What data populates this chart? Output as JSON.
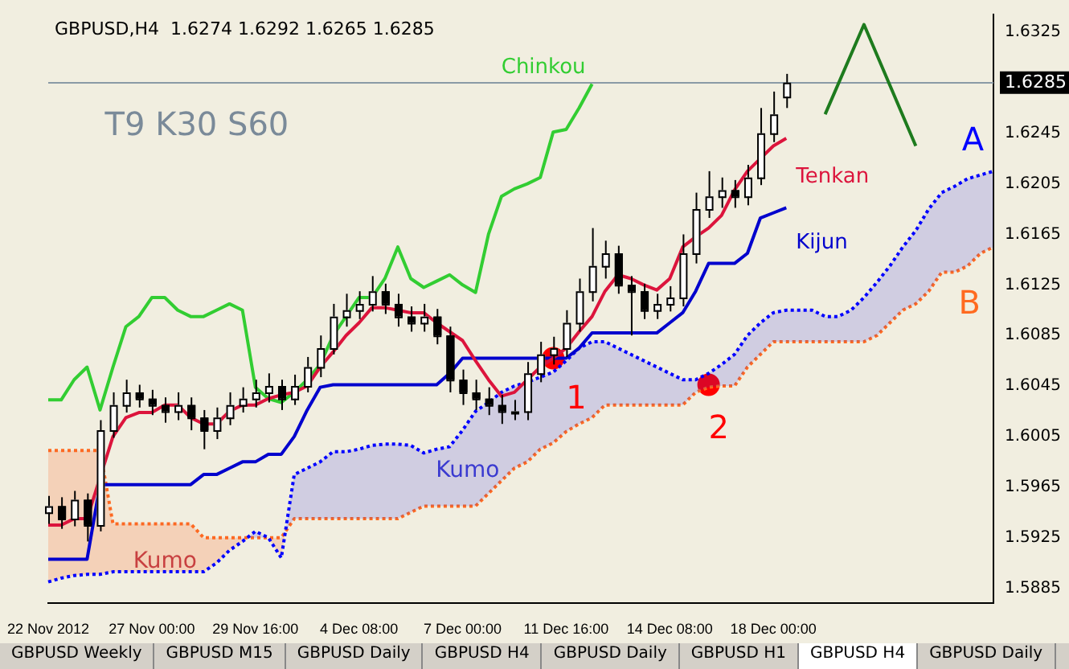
{
  "chart_data": {
    "type": "candlestick",
    "title": "GBPUSD,H4  1.6274 1.6292 1.6265 1.6285",
    "categories": [
      "22 Nov 2012",
      null,
      null,
      null,
      null,
      null,
      null,
      null,
      "27 Nov 00:00",
      null,
      null,
      null,
      null,
      null,
      null,
      null,
      "29 Nov 16:00",
      null,
      null,
      null,
      null,
      null,
      null,
      null,
      "4 Dec 08:00",
      null,
      null,
      null,
      null,
      null,
      null,
      null,
      "7 Dec 00:00",
      null,
      null,
      null,
      null,
      null,
      null,
      null,
      "11 Dec 16:00",
      null,
      null,
      null,
      null,
      null,
      null,
      null,
      "14 Dec 08:00",
      null,
      null,
      null,
      null,
      null,
      null,
      null,
      "18 Dec 00:00",
      null,
      null,
      null,
      null,
      null,
      null,
      null,
      null,
      null,
      null,
      null,
      null,
      null,
      null,
      null,
      null,
      null
    ],
    "ohlc": [
      [
        1.5945,
        1.5958,
        1.5936,
        1.595
      ],
      [
        1.595,
        1.5957,
        1.5932,
        1.594
      ],
      [
        1.594,
        1.5962,
        1.5934,
        1.5955
      ],
      [
        1.5955,
        1.596,
        1.5922,
        1.5935
      ],
      [
        1.5935,
        1.6018,
        1.593,
        1.601
      ],
      [
        1.601,
        1.604,
        1.6004,
        1.603
      ],
      [
        1.603,
        1.605,
        1.6024,
        1.604
      ],
      [
        1.604,
        1.6046,
        1.6028,
        1.6035
      ],
      [
        1.6035,
        1.6042,
        1.6022,
        1.603
      ],
      [
        1.603,
        1.6036,
        1.6016,
        1.6025
      ],
      [
        1.6025,
        1.604,
        1.6018,
        1.603
      ],
      [
        1.603,
        1.6036,
        1.601,
        1.602
      ],
      [
        1.602,
        1.6026,
        1.5995,
        1.601
      ],
      [
        1.601,
        1.6028,
        1.6003,
        1.602
      ],
      [
        1.602,
        1.604,
        1.6014,
        1.603
      ],
      [
        1.603,
        1.6044,
        1.6024,
        1.6035
      ],
      [
        1.6035,
        1.605,
        1.6028,
        1.604
      ],
      [
        1.604,
        1.6055,
        1.6032,
        1.6045
      ],
      [
        1.6045,
        1.605,
        1.6026,
        1.6035
      ],
      [
        1.6035,
        1.6054,
        1.603,
        1.6045
      ],
      [
        1.6045,
        1.6068,
        1.604,
        1.606
      ],
      [
        1.606,
        1.6085,
        1.6052,
        1.6075
      ],
      [
        1.6075,
        1.611,
        1.607,
        1.61
      ],
      [
        1.61,
        1.6118,
        1.6092,
        1.6105
      ],
      [
        1.6105,
        1.612,
        1.6098,
        1.611
      ],
      [
        1.611,
        1.6132,
        1.6104,
        1.612
      ],
      [
        1.612,
        1.6126,
        1.6102,
        1.611
      ],
      [
        1.611,
        1.6118,
        1.6092,
        1.61
      ],
      [
        1.61,
        1.6108,
        1.6088,
        1.6095
      ],
      [
        1.6095,
        1.611,
        1.6088,
        1.61
      ],
      [
        1.61,
        1.6106,
        1.6078,
        1.6085
      ],
      [
        1.6085,
        1.6092,
        1.604,
        1.605
      ],
      [
        1.605,
        1.6058,
        1.603,
        1.604
      ],
      [
        1.604,
        1.605,
        1.6026,
        1.6035
      ],
      [
        1.6035,
        1.6044,
        1.6022,
        1.603
      ],
      [
        1.603,
        1.6038,
        1.6015,
        1.6025
      ],
      [
        1.6025,
        1.6034,
        1.6018,
        1.6025
      ],
      [
        1.6025,
        1.6064,
        1.6018,
        1.6055
      ],
      [
        1.6055,
        1.608,
        1.6048,
        1.607
      ],
      [
        1.607,
        1.6084,
        1.6062,
        1.6075
      ],
      [
        1.6075,
        1.6105,
        1.6068,
        1.6095
      ],
      [
        1.6095,
        1.613,
        1.6088,
        1.612
      ],
      [
        1.612,
        1.617,
        1.6112,
        1.614
      ],
      [
        1.614,
        1.616,
        1.613,
        1.615
      ],
      [
        1.615,
        1.6156,
        1.6118,
        1.6125
      ],
      [
        1.6125,
        1.6132,
        1.6085,
        1.612
      ],
      [
        1.612,
        1.6126,
        1.6098,
        1.6105
      ],
      [
        1.6105,
        1.6118,
        1.6098,
        1.611
      ],
      [
        1.611,
        1.6124,
        1.6104,
        1.6115
      ],
      [
        1.6115,
        1.6165,
        1.6108,
        1.615
      ],
      [
        1.615,
        1.6198,
        1.6142,
        1.6185
      ],
      [
        1.6185,
        1.6215,
        1.6178,
        1.6195
      ],
      [
        1.6195,
        1.621,
        1.6186,
        1.62
      ],
      [
        1.62,
        1.6208,
        1.6186,
        1.6195
      ],
      [
        1.6195,
        1.622,
        1.6188,
        1.621
      ],
      [
        1.621,
        1.6265,
        1.6204,
        1.6245
      ],
      [
        1.6245,
        1.6278,
        1.6238,
        1.626
      ],
      [
        1.6274,
        1.6292,
        1.6265,
        1.6285
      ],
      null,
      null,
      null,
      null,
      null,
      null,
      null,
      null,
      null,
      null,
      null,
      null,
      null,
      null,
      null,
      null
    ],
    "series": [
      {
        "name": "Tenkan",
        "type": "line",
        "color": "#dc143c",
        "values": [
          1.5935,
          1.5935,
          1.594,
          1.594,
          null,
          1.6005,
          1.602,
          1.6024,
          1.6024,
          1.603,
          1.603,
          1.602,
          1.6015,
          1.6015,
          1.6025,
          1.603,
          1.603,
          1.6035,
          1.6038,
          1.604,
          1.6045,
          1.606,
          1.6072,
          1.6085,
          1.6095,
          1.6107,
          1.6107,
          1.6105,
          1.6103,
          1.6103,
          1.6095,
          1.6088,
          1.6081,
          1.6065,
          1.605,
          1.6037,
          1.604,
          1.605,
          1.606,
          1.6067,
          1.6075,
          1.6088,
          1.61,
          1.612,
          1.6133,
          1.613,
          1.6125,
          1.6121,
          1.613,
          1.6155,
          1.6163,
          1.617,
          1.618,
          1.62,
          1.6215,
          1.6225,
          1.6235,
          1.6241,
          null,
          null,
          null,
          null,
          null,
          null,
          null,
          null,
          null,
          null,
          null,
          null,
          null,
          null,
          null,
          null
        ]
      },
      {
        "name": "Kijun",
        "type": "line",
        "color": "#0000cd",
        "values": [
          1.5908,
          1.5908,
          1.5908,
          1.5908,
          1.5967,
          1.5967,
          1.5967,
          1.5967,
          1.5967,
          1.5967,
          1.5967,
          1.5967,
          1.5975,
          1.5975,
          1.598,
          1.5985,
          1.5985,
          1.5991,
          1.5991,
          1.6005,
          1.6026,
          1.6044,
          1.6046,
          1.6046,
          1.6046,
          1.6046,
          1.6046,
          1.6046,
          1.6046,
          1.6046,
          1.6046,
          1.6055,
          1.6067,
          1.6067,
          1.6067,
          1.6067,
          1.6067,
          1.6067,
          1.6067,
          1.6067,
          1.6067,
          1.6075,
          1.6087,
          1.6087,
          1.6087,
          1.6087,
          1.6087,
          1.6087,
          1.6095,
          1.6103,
          1.612,
          1.6142,
          1.6142,
          1.6142,
          1.615,
          1.6178,
          1.6182,
          1.6186,
          null,
          null,
          null,
          null,
          null,
          null,
          null,
          null,
          null,
          null,
          null,
          null,
          null,
          null,
          null,
          null
        ]
      },
      {
        "name": "Chinkou",
        "type": "line",
        "color": "#32cd32",
        "values": [
          1.6034,
          1.6034,
          1.605,
          1.606,
          1.6026,
          1.606,
          1.6092,
          1.61,
          1.6115,
          1.6115,
          1.6105,
          1.61,
          1.61,
          1.6105,
          1.611,
          1.6105,
          1.6044,
          1.6035,
          1.6032,
          1.604,
          1.605,
          1.6062,
          1.6085,
          1.61,
          1.6115,
          1.6115,
          1.613,
          1.6155,
          1.613,
          1.6123,
          1.6128,
          1.6133,
          1.6125,
          1.6119,
          1.6165,
          1.6195,
          1.6201,
          1.6205,
          1.621,
          1.6246,
          1.6248,
          1.6265,
          1.6284,
          null,
          null,
          null,
          null,
          null,
          null,
          null,
          null,
          null,
          null,
          null,
          null,
          null,
          null,
          null,
          null,
          null,
          null,
          null,
          null,
          null,
          null,
          null,
          null,
          null,
          null,
          null,
          null,
          null,
          null,
          null
        ]
      },
      {
        "name": "A",
        "type": "line",
        "line_style": "dotted",
        "color": "#0000ff",
        "values": [
          1.589,
          1.5893,
          1.5895,
          1.5896,
          1.5896,
          1.5898,
          1.5898,
          1.5898,
          1.5898,
          1.5898,
          1.5898,
          1.5898,
          1.5898,
          1.5905,
          1.5915,
          1.5922,
          1.593,
          1.5925,
          1.5909,
          1.5975,
          1.598,
          1.5985,
          1.5993,
          1.5993,
          1.5995,
          1.5998,
          1.5999,
          1.5999,
          1.5998,
          1.5992,
          1.5995,
          1.5997,
          1.601,
          1.6025,
          1.6032,
          1.604,
          1.6045,
          1.6048,
          1.6052,
          1.6056,
          1.6065,
          1.6075,
          1.608,
          1.608,
          1.6075,
          1.607,
          1.6065,
          1.606,
          1.6055,
          1.605,
          1.605,
          1.6055,
          1.6062,
          1.607,
          1.6085,
          1.6095,
          1.6103,
          1.6105,
          1.6105,
          1.6105,
          1.61,
          1.61,
          1.6105,
          1.6115,
          1.6127,
          1.614,
          1.6155,
          1.6168,
          1.6185,
          1.6198,
          1.6203,
          1.6209,
          1.6212,
          1.6215
        ]
      },
      {
        "name": "B",
        "type": "line",
        "line_style": "dotted",
        "color": "#ff6a20",
        "values": [
          1.5994,
          1.5994,
          1.5994,
          1.5994,
          1.5994,
          1.5936,
          1.5936,
          1.5936,
          1.5936,
          1.5936,
          1.5936,
          1.5936,
          1.5925,
          1.5925,
          1.5925,
          1.5925,
          1.5925,
          1.5925,
          1.5925,
          1.594,
          1.594,
          1.594,
          1.594,
          1.594,
          1.594,
          1.594,
          1.594,
          1.594,
          1.5945,
          1.595,
          1.595,
          1.595,
          1.595,
          1.595,
          1.596,
          1.597,
          1.598,
          1.5985,
          1.5995,
          1.6,
          1.6009,
          1.6015,
          1.602,
          1.603,
          1.603,
          1.603,
          1.603,
          1.603,
          1.603,
          1.603,
          1.604,
          1.6044,
          1.6045,
          1.6045,
          1.606,
          1.607,
          1.608,
          1.608,
          1.608,
          1.608,
          1.608,
          1.608,
          1.608,
          1.608,
          1.6085,
          1.6095,
          1.6105,
          1.611,
          1.612,
          1.6135,
          1.6135,
          1.614,
          1.615,
          1.6155
        ]
      },
      {
        "type": "line",
        "color": "#1e7b1e",
        "values": [
          null,
          null,
          null,
          null,
          null,
          null,
          null,
          null,
          null,
          null,
          null,
          null,
          null,
          null,
          null,
          null,
          null,
          null,
          null,
          null,
          null,
          null,
          null,
          null,
          null,
          null,
          null,
          null,
          null,
          null,
          null,
          null,
          null,
          null,
          null,
          null,
          null,
          null,
          null,
          null,
          null,
          null,
          null,
          null,
          null,
          null,
          null,
          null,
          null,
          null,
          null,
          null,
          null,
          null,
          null,
          null,
          null,
          null,
          null,
          null,
          1.626,
          null,
          null,
          1.6331,
          null,
          null,
          null,
          1.6235,
          null,
          null,
          null,
          null,
          null,
          null
        ]
      },
      {
        "name": "1",
        "type": "scatter",
        "marker": "circle",
        "color": "#ff0000",
        "values": [
          null,
          null,
          null,
          null,
          null,
          null,
          null,
          null,
          null,
          null,
          null,
          null,
          null,
          null,
          null,
          null,
          null,
          null,
          null,
          null,
          null,
          null,
          null,
          null,
          null,
          null,
          null,
          null,
          null,
          null,
          null,
          null,
          null,
          null,
          null,
          null,
          null,
          null,
          null,
          1.6067,
          null,
          null,
          null,
          null,
          null,
          null,
          null,
          null,
          null,
          null,
          null,
          null,
          null,
          null,
          null,
          null,
          null,
          null,
          null,
          null,
          null,
          null,
          null,
          null,
          null,
          null,
          null,
          null,
          null,
          null,
          null,
          null,
          null,
          null
        ]
      },
      {
        "name": "2",
        "type": "scatter",
        "marker": "circle",
        "color": "#ff0000",
        "values": [
          null,
          null,
          null,
          null,
          null,
          null,
          null,
          null,
          null,
          null,
          null,
          null,
          null,
          null,
          null,
          null,
          null,
          null,
          null,
          null,
          null,
          null,
          null,
          null,
          null,
          null,
          null,
          null,
          null,
          null,
          null,
          null,
          null,
          null,
          null,
          null,
          null,
          null,
          null,
          null,
          null,
          null,
          null,
          null,
          null,
          null,
          null,
          null,
          null,
          null,
          null,
          1.6046,
          null,
          null,
          null,
          null,
          null,
          null,
          null,
          null,
          null,
          null,
          null,
          null,
          null,
          null,
          null,
          null,
          null,
          null,
          null,
          null,
          null,
          null
        ]
      }
    ],
    "ylim": [
      1.5873,
      1.6339
    ],
    "yticks": [
      1.5885,
      1.5925,
      1.5965,
      1.6005,
      1.6045,
      1.6085,
      1.6125,
      1.6165,
      1.6205,
      1.6245,
      1.6285,
      1.6325
    ],
    "ref_lines": [
      {
        "axis": "y",
        "value": 1.6285,
        "label": "1.6285",
        "color": "#8a9aa6"
      }
    ],
    "annotations": [
      "T9 K30 S60",
      "Kumo",
      "Kumo",
      "GBPUSD Weekly",
      "GBPUSD M15",
      "GBPUSD Daily",
      "GBPUSD H4",
      "GBPUSD Daily",
      "GBPUSD H1",
      "GBPUSD H4",
      "GBPUSD Daily"
    ],
    "marker": "none",
    "legend": false,
    "grid": false
  }
}
